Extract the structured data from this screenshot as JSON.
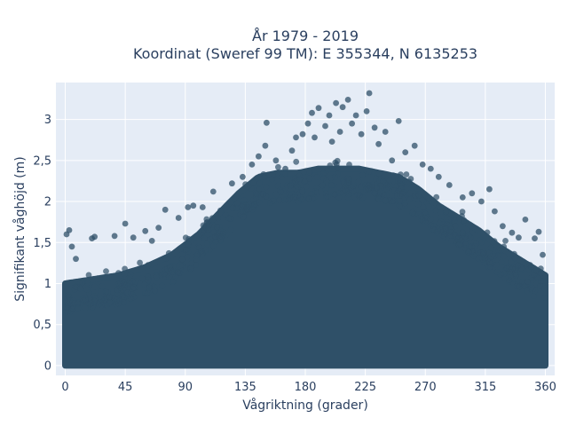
{
  "chart_data": {
    "type": "scatter",
    "title_line1": "År 1979 - 2019",
    "title_line2": "Koordinat (Sweref 99 TM): E 355344, N 6135253",
    "xlabel": "Vågriktning (grader)",
    "ylabel": "Signifikant våghöjd (m)",
    "xlim": [
      -7,
      367
    ],
    "ylim": [
      -0.12,
      3.45
    ],
    "x_ticks": [
      0,
      45,
      90,
      135,
      180,
      225,
      270,
      315,
      360
    ],
    "x_tick_labels": [
      "0",
      "45",
      "90",
      "135",
      "180",
      "225",
      "270",
      "315",
      "360"
    ],
    "y_ticks": [
      0,
      0.5,
      1,
      1.5,
      2,
      2.5,
      3
    ],
    "y_tick_labels": [
      "0",
      "0,5",
      "1",
      "1,5",
      "2",
      "2,5",
      "3"
    ],
    "grid": true,
    "legend": "none",
    "marker_color": "#2f5068",
    "plot_background": "#e5ecf6",
    "envelope": {
      "x": [
        0,
        20,
        40,
        60,
        80,
        100,
        115,
        130,
        145,
        160,
        175,
        190,
        205,
        220,
        235,
        250,
        265,
        280,
        295,
        310,
        325,
        340,
        355,
        360
      ],
      "upper": [
        1.0,
        1.05,
        1.1,
        1.2,
        1.35,
        1.6,
        1.85,
        2.1,
        2.3,
        2.35,
        2.35,
        2.4,
        2.4,
        2.4,
        2.35,
        2.3,
        2.15,
        1.95,
        1.8,
        1.65,
        1.45,
        1.3,
        1.15,
        1.1
      ],
      "lower": [
        0.0,
        0.0,
        0.0,
        0.0,
        0.0,
        0.0,
        0.0,
        0.0,
        0.0,
        0.0,
        0.0,
        0.0,
        0.0,
        0.0,
        0.0,
        0.0,
        0.0,
        0.0,
        0.0,
        0.0,
        0.0,
        0.0,
        0.0,
        0.0
      ]
    },
    "outliers": [
      {
        "x": 1,
        "y": 1.6
      },
      {
        "x": 3,
        "y": 1.65
      },
      {
        "x": 5,
        "y": 1.45
      },
      {
        "x": 8,
        "y": 1.3
      },
      {
        "x": 20,
        "y": 1.55
      },
      {
        "x": 22,
        "y": 1.57
      },
      {
        "x": 37,
        "y": 1.58
      },
      {
        "x": 45,
        "y": 1.73
      },
      {
        "x": 51,
        "y": 1.56
      },
      {
        "x": 60,
        "y": 1.64
      },
      {
        "x": 65,
        "y": 1.52
      },
      {
        "x": 70,
        "y": 1.68
      },
      {
        "x": 75,
        "y": 1.9
      },
      {
        "x": 85,
        "y": 1.8
      },
      {
        "x": 92,
        "y": 1.93
      },
      {
        "x": 96,
        "y": 1.95
      },
      {
        "x": 103,
        "y": 1.93
      },
      {
        "x": 111,
        "y": 2.12
      },
      {
        "x": 125,
        "y": 2.22
      },
      {
        "x": 133,
        "y": 2.3
      },
      {
        "x": 140,
        "y": 2.45
      },
      {
        "x": 145,
        "y": 2.55
      },
      {
        "x": 150,
        "y": 2.68
      },
      {
        "x": 151,
        "y": 2.96
      },
      {
        "x": 158,
        "y": 2.5
      },
      {
        "x": 165,
        "y": 2.4
      },
      {
        "x": 170,
        "y": 2.62
      },
      {
        "x": 173,
        "y": 2.78
      },
      {
        "x": 178,
        "y": 2.82
      },
      {
        "x": 182,
        "y": 2.95
      },
      {
        "x": 185,
        "y": 3.08
      },
      {
        "x": 187,
        "y": 2.78
      },
      {
        "x": 190,
        "y": 3.14
      },
      {
        "x": 195,
        "y": 2.92
      },
      {
        "x": 198,
        "y": 3.05
      },
      {
        "x": 200,
        "y": 2.73
      },
      {
        "x": 203,
        "y": 3.2
      },
      {
        "x": 206,
        "y": 2.85
      },
      {
        "x": 208,
        "y": 3.15
      },
      {
        "x": 212,
        "y": 3.24
      },
      {
        "x": 215,
        "y": 2.95
      },
      {
        "x": 218,
        "y": 3.05
      },
      {
        "x": 222,
        "y": 2.82
      },
      {
        "x": 226,
        "y": 3.1
      },
      {
        "x": 228,
        "y": 3.32
      },
      {
        "x": 232,
        "y": 2.9
      },
      {
        "x": 235,
        "y": 2.7
      },
      {
        "x": 240,
        "y": 2.85
      },
      {
        "x": 245,
        "y": 2.5
      },
      {
        "x": 250,
        "y": 2.98
      },
      {
        "x": 255,
        "y": 2.6
      },
      {
        "x": 262,
        "y": 2.68
      },
      {
        "x": 268,
        "y": 2.45
      },
      {
        "x": 274,
        "y": 2.4
      },
      {
        "x": 280,
        "y": 2.3
      },
      {
        "x": 288,
        "y": 2.2
      },
      {
        "x": 298,
        "y": 2.05
      },
      {
        "x": 305,
        "y": 2.1
      },
      {
        "x": 312,
        "y": 2.0
      },
      {
        "x": 318,
        "y": 2.15
      },
      {
        "x": 322,
        "y": 1.88
      },
      {
        "x": 328,
        "y": 1.7
      },
      {
        "x": 335,
        "y": 1.62
      },
      {
        "x": 340,
        "y": 1.56
      },
      {
        "x": 345,
        "y": 1.78
      },
      {
        "x": 352,
        "y": 1.55
      },
      {
        "x": 355,
        "y": 1.63
      },
      {
        "x": 358,
        "y": 1.35
      }
    ]
  }
}
